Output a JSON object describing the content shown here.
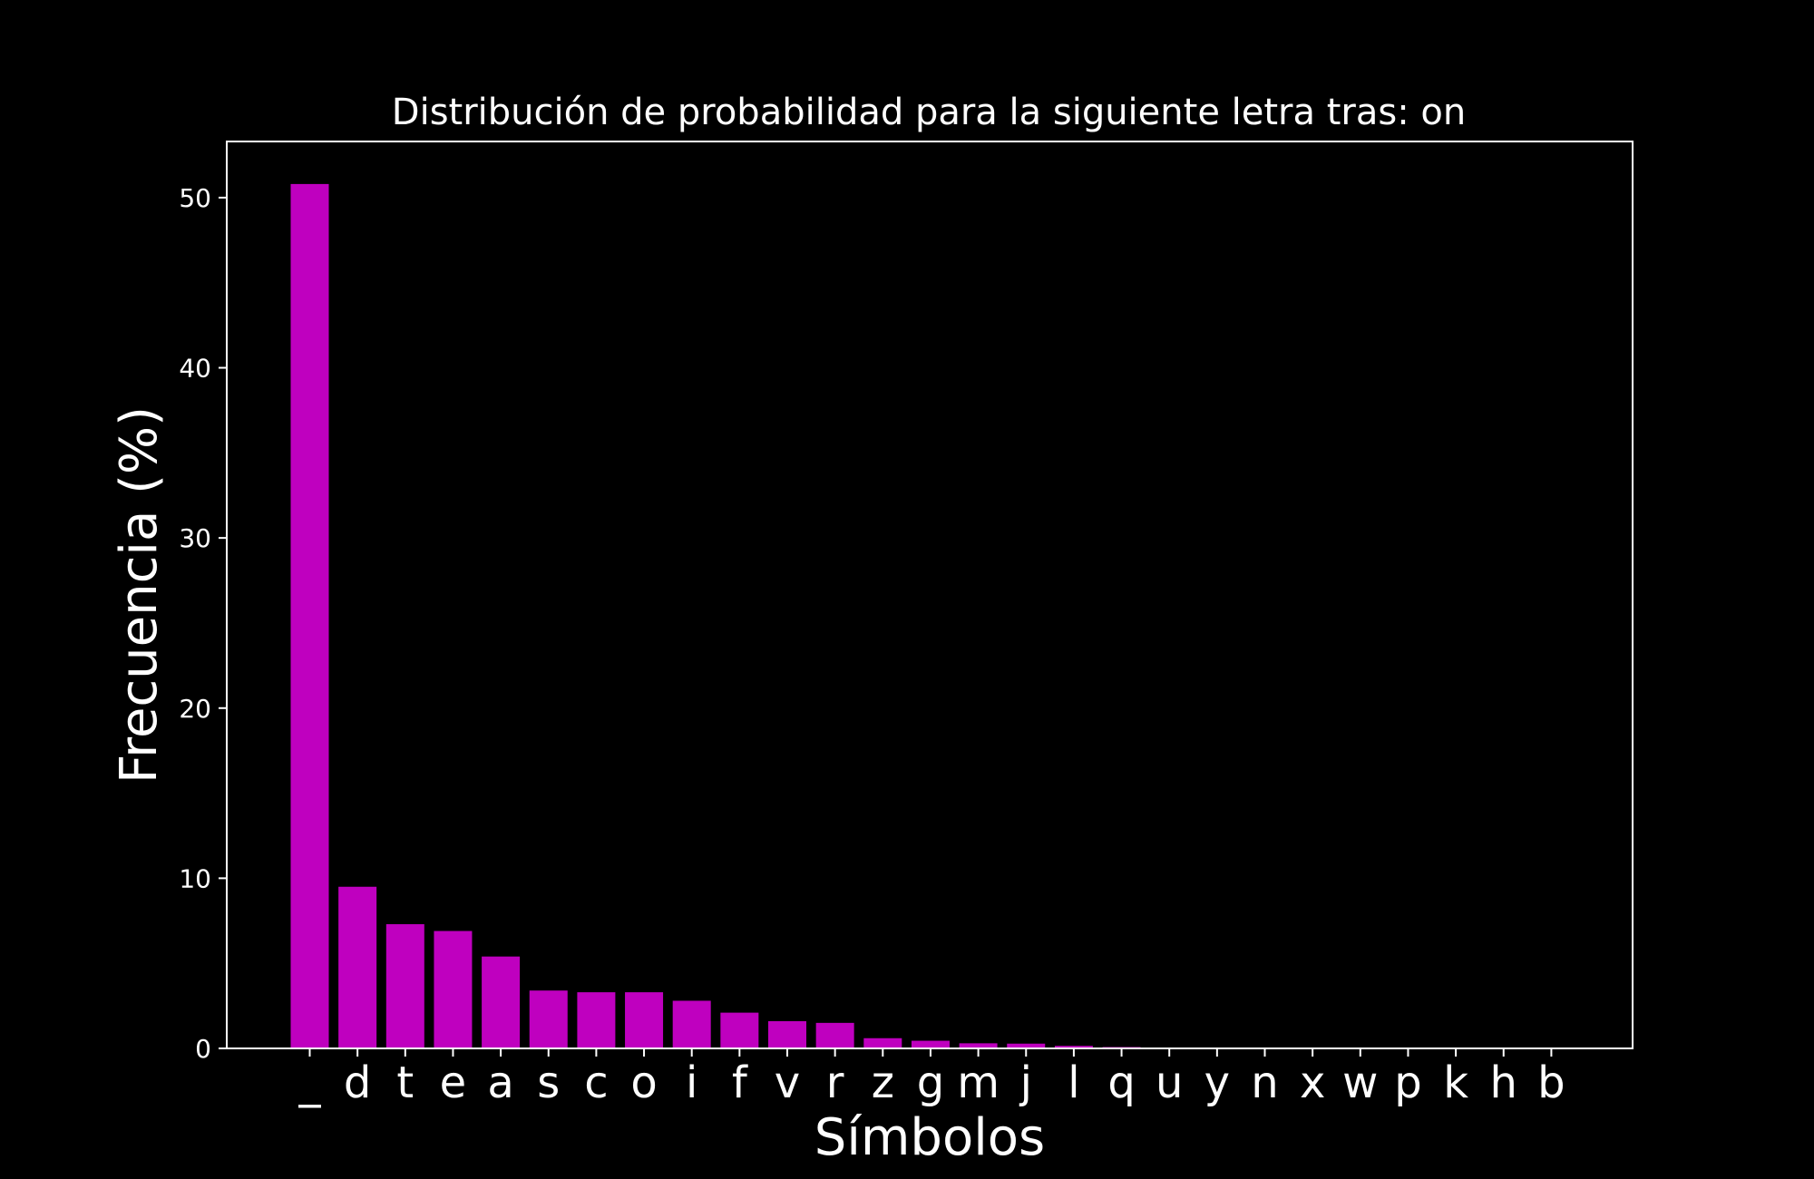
{
  "colors": {
    "background": "#000000",
    "bar": "#bf00bf",
    "axes": "#ffffff",
    "text": "#ffffff"
  },
  "chart_data": {
    "type": "bar",
    "title": "Distribución de probabilidad para la siguiente letra tras: on",
    "xlabel": "Símbolos",
    "ylabel": "Frecuencia (%)",
    "ylim": [
      0,
      53.3
    ],
    "yticks": [
      0,
      10,
      20,
      30,
      40,
      50
    ],
    "grid": false,
    "categories": [
      "_",
      "d",
      "t",
      "e",
      "a",
      "s",
      "c",
      "o",
      "i",
      "f",
      "v",
      "r",
      "z",
      "g",
      "m",
      "j",
      "l",
      "q",
      "u",
      "y",
      "n",
      "x",
      "w",
      "p",
      "k",
      "h",
      "b"
    ],
    "values": [
      50.8,
      9.5,
      7.3,
      6.9,
      5.4,
      3.4,
      3.3,
      3.3,
      2.8,
      2.1,
      1.6,
      1.5,
      0.6,
      0.45,
      0.3,
      0.28,
      0.15,
      0.08,
      0.03,
      0.02,
      0.01,
      0.01,
      0.01,
      0.01,
      0.01,
      0.01,
      0.01
    ]
  }
}
